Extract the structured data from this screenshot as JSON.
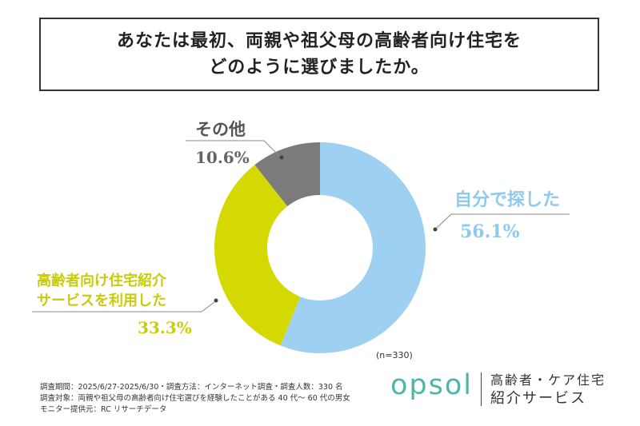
{
  "title": {
    "line1": "あなたは最初、両親や祖父母の高齢者向け住宅を",
    "line2": "どのように選びましたか。"
  },
  "chart_data": {
    "type": "pie",
    "variant": "donut",
    "categories": [
      "自分で探した",
      "高齢者向け住宅紹介サービスを利用した",
      "その他"
    ],
    "values": [
      56.1,
      33.3,
      10.6
    ],
    "colors": [
      "#9dd0f1",
      "#d4d903",
      "#7b7b7b"
    ],
    "labels": {
      "self": "自分で探した",
      "self_pct": "56.1%",
      "service_line1": "高齢者向け住宅紹介",
      "service_line2": "サービスを利用した",
      "service_pct": "33.3%",
      "other": "その他",
      "other_pct": "10.6%"
    },
    "n_note": "(n=330)"
  },
  "footer": {
    "line1": "調査期間：2025/6/27-2025/6/30・調査方法：インターネット調査・調査人数：330 名",
    "line2": "調査対象：両親や祖父母の高齢者向け住宅選びを経験したことがある 40 代〜 60 代の男女",
    "line3": "モニター提供元：RC リサーチデータ"
  },
  "logo": {
    "word": "opsol",
    "sub1": "高齢者・ケア住宅",
    "sub2": "紹介サービス",
    "color": "#4fb5a7"
  }
}
